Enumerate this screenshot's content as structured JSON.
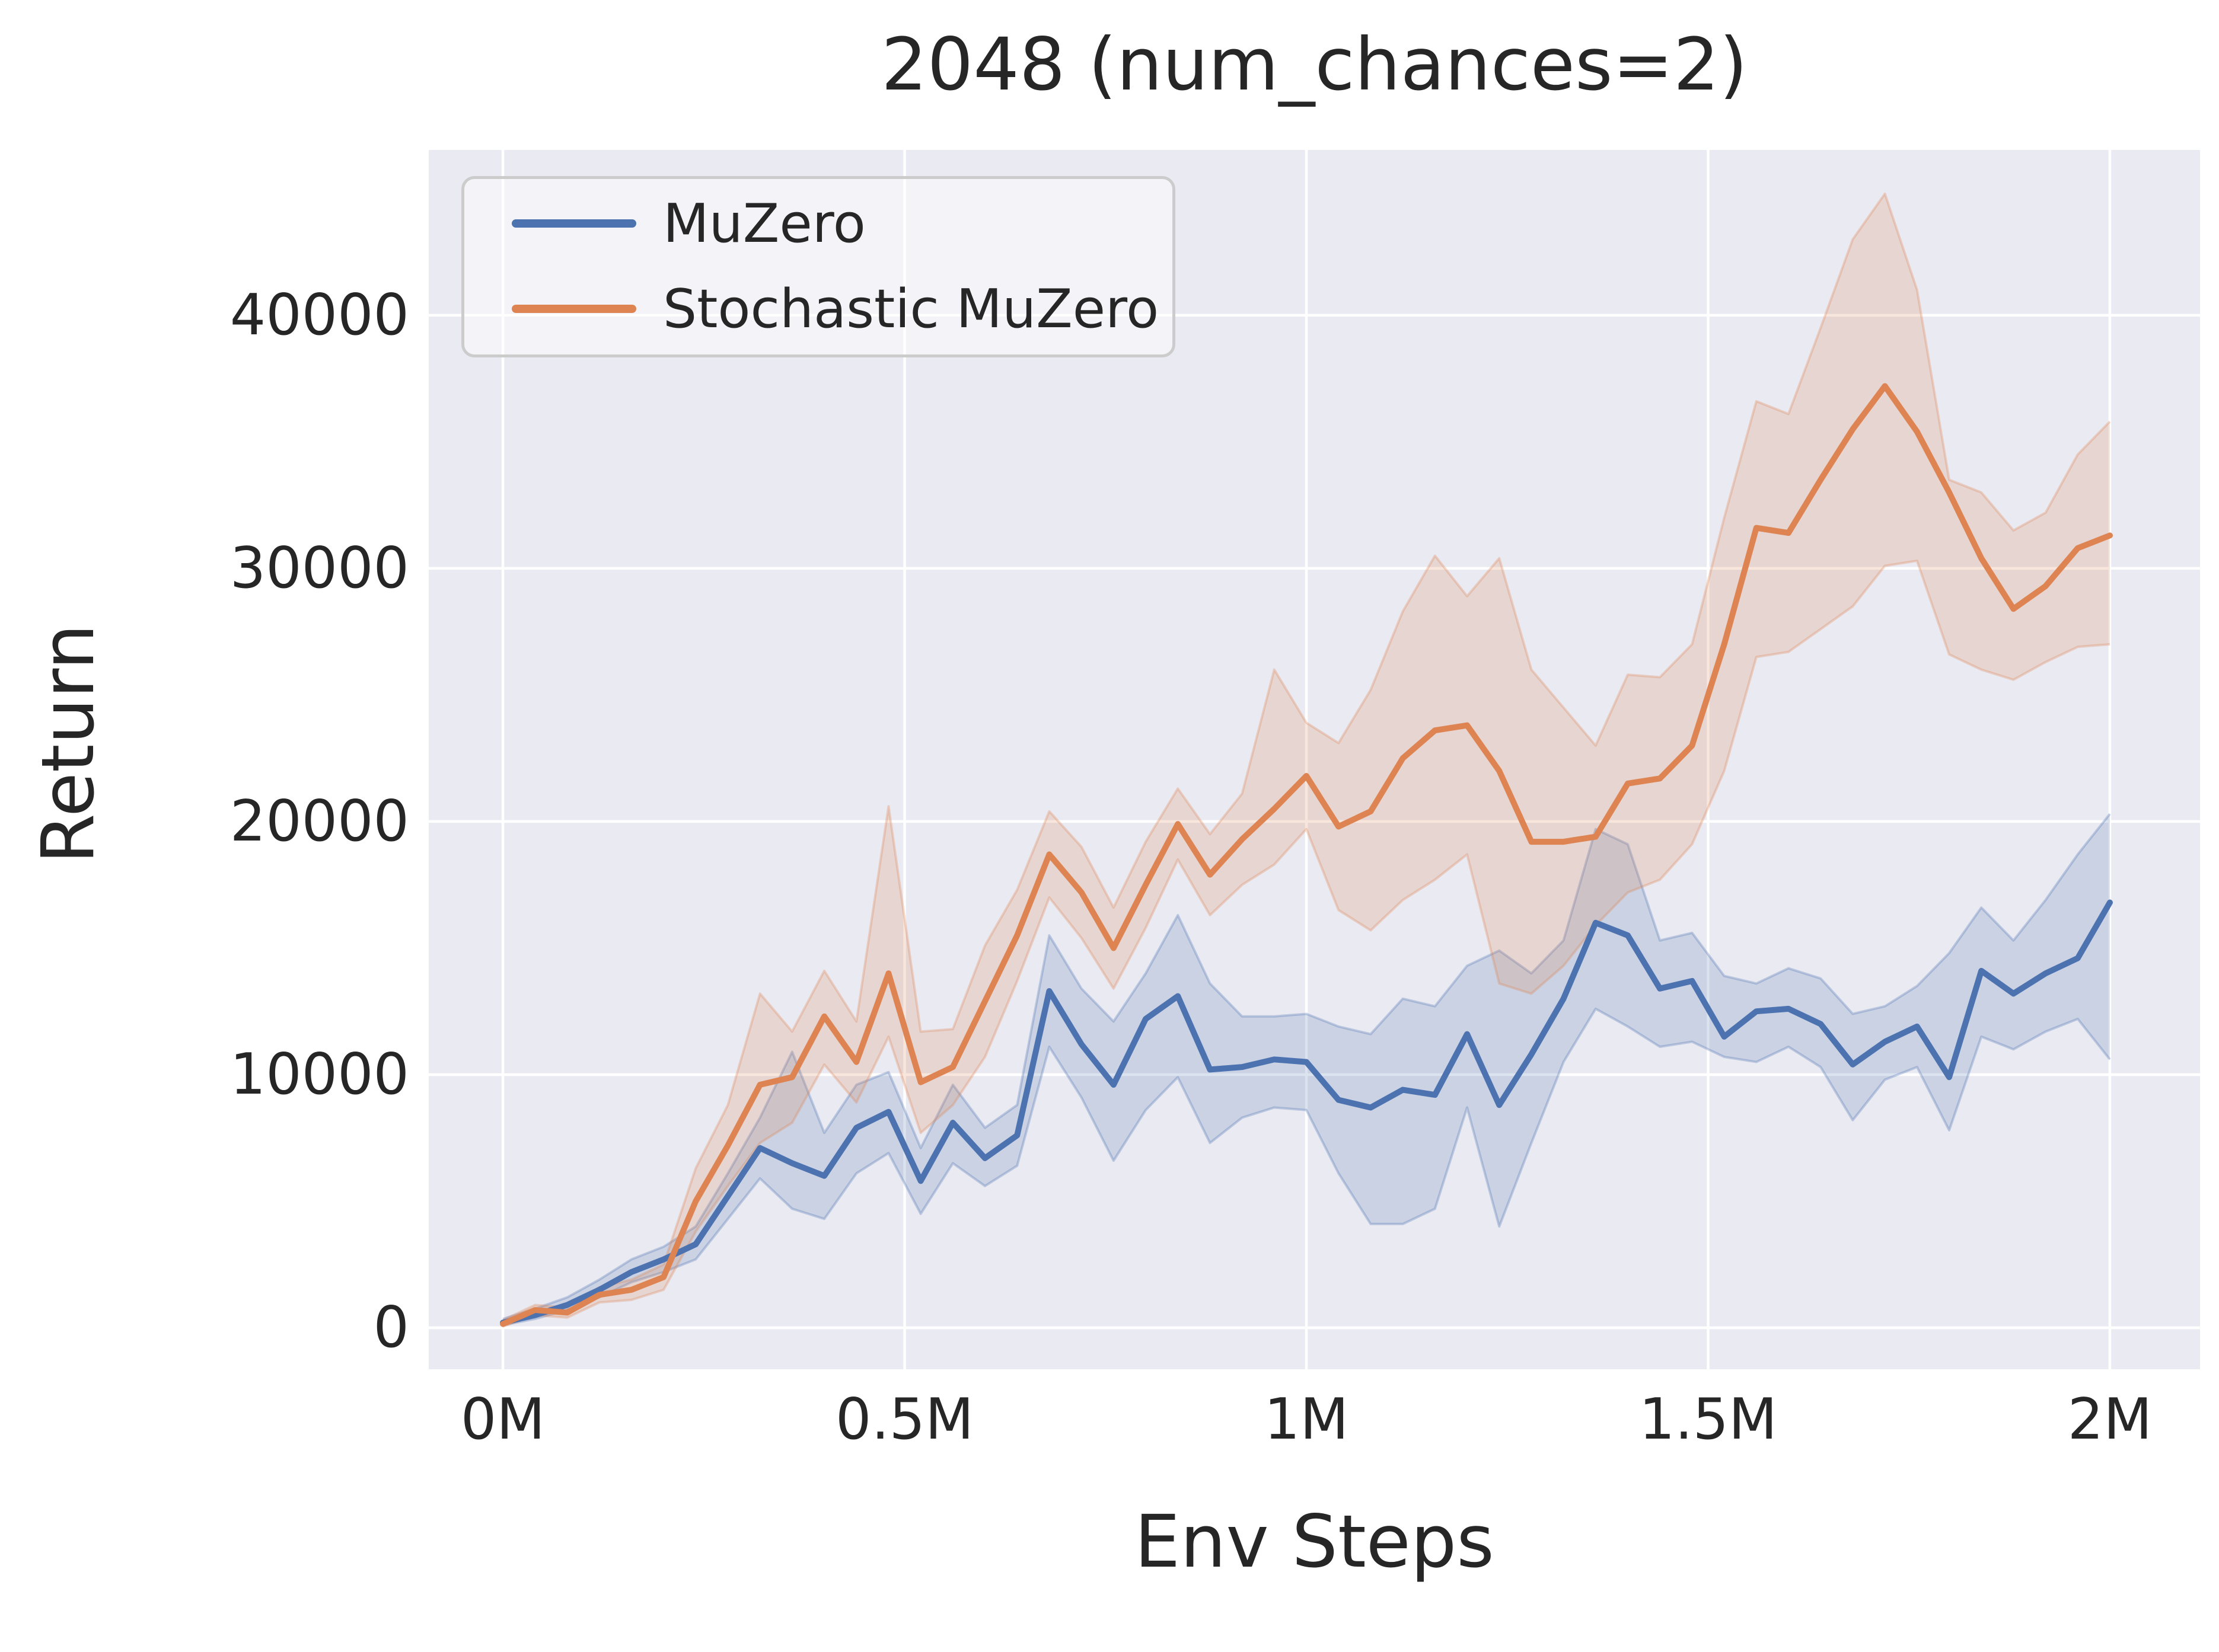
{
  "chart_data": {
    "type": "line",
    "title": "2048 (num_chances=2)",
    "xlabel": "Env Steps",
    "ylabel": "Return",
    "grid": true,
    "legend_position": "upper left",
    "colors": {
      "plot_background": "#EAEAF2",
      "figure_background": "#FFFFFF",
      "gridline": "#FFFFFF",
      "text": "#262626",
      "muzero": "#4C72B0",
      "stochastic_muzero": "#DD8452"
    },
    "xlim": [
      -0.0923,
      2.1122
    ],
    "ylim": [
      -1640,
      46530
    ],
    "x_ticks": {
      "values": [
        0,
        0.5,
        1,
        1.5,
        2
      ],
      "labels": [
        "0M",
        "0.5M",
        "1M",
        "1.5M",
        "2M"
      ]
    },
    "y_ticks": {
      "values": [
        0,
        10000,
        20000,
        30000,
        40000
      ],
      "labels": [
        "0",
        "10000",
        "20000",
        "30000",
        "40000"
      ]
    },
    "x": [
      0.0,
      0.04,
      0.08,
      0.12,
      0.16,
      0.2,
      0.24,
      0.28,
      0.32,
      0.36,
      0.4,
      0.44,
      0.48,
      0.52,
      0.56,
      0.6,
      0.64,
      0.68,
      0.72,
      0.76,
      0.8,
      0.84,
      0.88,
      0.92,
      0.96,
      1.0,
      1.04,
      1.08,
      1.12,
      1.16,
      1.2,
      1.24,
      1.28,
      1.32,
      1.36,
      1.4,
      1.44,
      1.48,
      1.52,
      1.56,
      1.6,
      1.64,
      1.68,
      1.72,
      1.76,
      1.8,
      1.84,
      1.88,
      1.92,
      1.96,
      2.0
    ],
    "series": [
      {
        "name": "MuZero",
        "color": "#4C72B0",
        "values": [
          200,
          500,
          900,
          1500,
          2200,
          2700,
          3300,
          5200,
          7100,
          6500,
          6000,
          7900,
          8530,
          5800,
          8100,
          6700,
          7600,
          13300,
          11200,
          9600,
          12200,
          13100,
          10200,
          10300,
          10600,
          10500,
          9000,
          8700,
          9400,
          9200,
          11600,
          8800,
          10800,
          13000,
          16000,
          15500,
          13400,
          13700,
          11500,
          12500,
          12600,
          12000,
          10400,
          11300,
          11900,
          9900,
          14100,
          13200,
          14000,
          14600,
          16800
        ],
        "ci_lo": [
          100,
          350,
          700,
          1200,
          1800,
          2200,
          2700,
          4300,
          5900,
          4700,
          4300,
          6100,
          6900,
          4500,
          6500,
          5600,
          6400,
          11100,
          9100,
          6600,
          8600,
          9900,
          7300,
          8300,
          8700,
          8600,
          6100,
          4100,
          4100,
          4700,
          8700,
          4000,
          7300,
          10500,
          12600,
          11900,
          11100,
          11300,
          10700,
          10500,
          11100,
          10300,
          8200,
          9800,
          10300,
          7800,
          11500,
          11000,
          11700,
          12200,
          10600
        ],
        "ci_hi": [
          350,
          750,
          1200,
          1900,
          2700,
          3200,
          4000,
          6100,
          8300,
          10900,
          7700,
          9600,
          10100,
          7100,
          9600,
          7900,
          8800,
          15500,
          13400,
          12100,
          14000,
          16300,
          13600,
          12300,
          12300,
          12400,
          11900,
          11600,
          13000,
          12700,
          14300,
          14900,
          14000,
          15300,
          19700,
          19100,
          15300,
          15600,
          13900,
          13600,
          14200,
          13800,
          12400,
          12700,
          13500,
          14800,
          16600,
          15300,
          16900,
          18700,
          20300
        ]
      },
      {
        "name": "Stochastic MuZero",
        "color": "#DD8452",
        "values": [
          150,
          700,
          600,
          1300,
          1500,
          2000,
          5000,
          7200,
          9600,
          9900,
          12300,
          10500,
          14000,
          9700,
          10300,
          12900,
          15500,
          18700,
          17200,
          15000,
          17500,
          19900,
          17900,
          19300,
          20500,
          21800,
          19800,
          20400,
          22500,
          23600,
          23800,
          22000,
          19200,
          19200,
          19400,
          21500,
          21700,
          23000,
          27000,
          31600,
          31400,
          33500,
          35500,
          37200,
          35400,
          33000,
          30400,
          28400,
          29300,
          30800,
          31300
        ],
        "ci_lo": [
          50,
          500,
          400,
          1000,
          1100,
          1500,
          3800,
          5600,
          7300,
          8100,
          10400,
          8900,
          11500,
          7700,
          8800,
          10700,
          13700,
          17000,
          15400,
          13400,
          15800,
          18500,
          16300,
          17500,
          18300,
          19700,
          16500,
          15700,
          16900,
          17700,
          18700,
          13600,
          13200,
          14300,
          15900,
          17200,
          17700,
          19100,
          22000,
          26500,
          26700,
          27600,
          28500,
          30100,
          30300,
          26600,
          26000,
          25600,
          26300,
          26900,
          27000
        ],
        "ci_hi": [
          300,
          900,
          800,
          1600,
          1900,
          2500,
          6300,
          8800,
          13200,
          11700,
          14100,
          12100,
          20600,
          11700,
          11800,
          15100,
          17300,
          20400,
          19000,
          16600,
          19200,
          21300,
          19500,
          21100,
          26000,
          23900,
          23100,
          25200,
          28300,
          30500,
          28900,
          30400,
          26000,
          24500,
          23000,
          25800,
          25700,
          27000,
          32000,
          36600,
          36100,
          39500,
          43000,
          44800,
          41000,
          33500,
          33000,
          31500,
          32200,
          34500,
          35800
        ]
      }
    ],
    "legend": {
      "entries": [
        {
          "label": "MuZero",
          "color": "#4C72B0"
        },
        {
          "label": "Stochastic MuZero",
          "color": "#DD8452"
        }
      ]
    }
  }
}
